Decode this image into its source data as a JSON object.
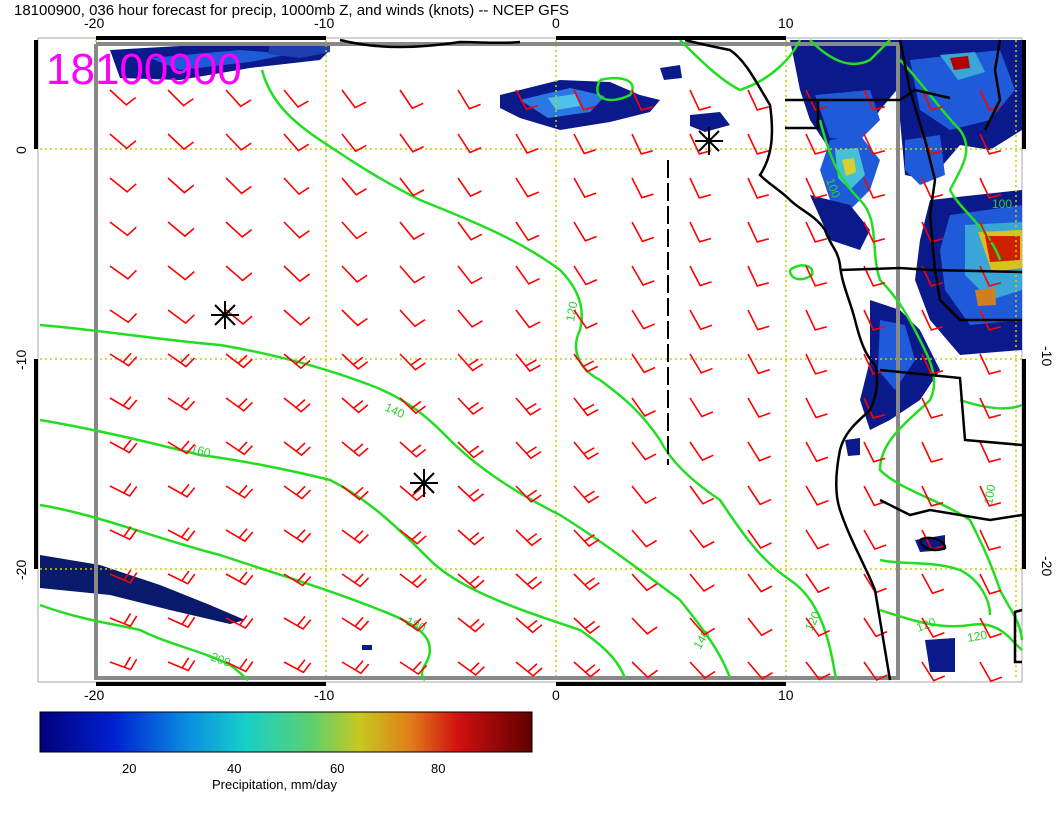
{
  "header": {
    "title": "18100900, 036 hour forecast for precip, 1000mb Z, and winds (knots) -- NCEP GFS",
    "date_stamp": "18100900"
  },
  "axes": {
    "top_lon_labels": [
      "-20",
      "-10",
      "0",
      "10"
    ],
    "bottom_lon_labels": [
      "-20",
      "-10",
      "0",
      "10"
    ],
    "left_lat_labels": [
      "0",
      "-10",
      "-20"
    ],
    "right_lat_labels": [
      "-10",
      "-20"
    ]
  },
  "contours": {
    "labels": [
      "100",
      "100",
      "100",
      "120",
      "120",
      "120",
      "120",
      "140",
      "140",
      "160",
      "180",
      "200"
    ]
  },
  "colorbar": {
    "ticks": [
      "20",
      "40",
      "60",
      "80"
    ],
    "label": "Precipitation, mm/day"
  },
  "colors": {
    "stamp": "#ff00ff",
    "wind_barbs": "#ff0000",
    "contours": "#33dd33",
    "gridlines": "#cccc00",
    "coast": "#000000"
  },
  "chart_data": {
    "type": "map",
    "lon_range": [
      -22,
      19
    ],
    "lat_range": [
      -25,
      5
    ],
    "contour_levels": [
      100,
      120,
      140,
      160,
      180,
      200
    ],
    "precip_scale": [
      0,
      100
    ],
    "colorbar_ticks": [
      20,
      40,
      60,
      80
    ]
  }
}
